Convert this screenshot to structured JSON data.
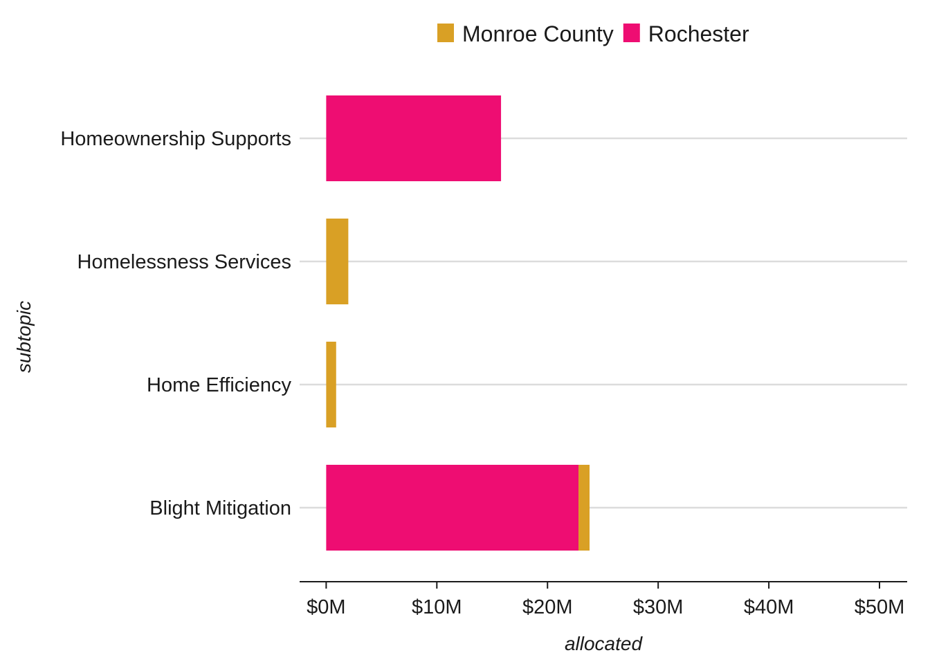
{
  "chart_data": {
    "type": "bar",
    "orientation": "horizontal",
    "stacked": true,
    "categories": [
      "Homeownership Supports",
      "Homelessness Services",
      "Home Efficiency",
      "Blight Mitigation"
    ],
    "series": [
      {
        "name": "Rochester",
        "color": "#ee0d72",
        "values": [
          15.8,
          0,
          0,
          22.8
        ]
      },
      {
        "name": "Monroe County",
        "color": "#d9a025",
        "values": [
          0,
          2.0,
          0.9,
          1.0
        ]
      }
    ],
    "legend_order": [
      "Monroe County",
      "Rochester"
    ],
    "legend_position": "top",
    "xlabel": "allocated",
    "ylabel": "subtopic",
    "xlim": [
      -2.4,
      52.5
    ],
    "xticks": [
      0,
      10,
      20,
      30,
      40,
      50
    ],
    "xtick_labels": [
      "$0M",
      "$10M",
      "$20M",
      "$30M",
      "$40M",
      "$50M"
    ],
    "grid": "horizontal"
  }
}
